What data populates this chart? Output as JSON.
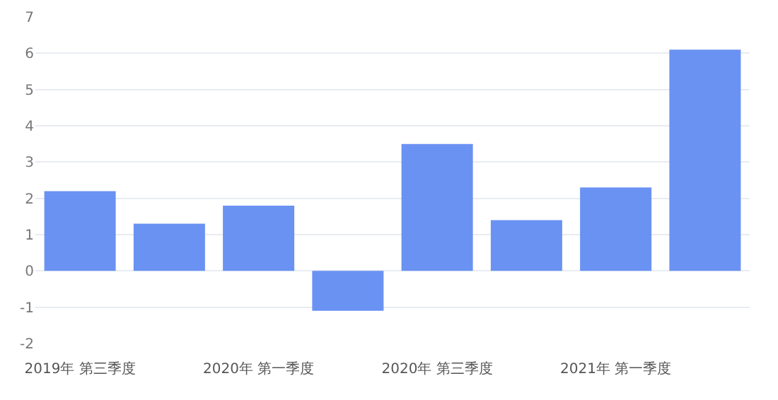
{
  "chart_data": {
    "type": "bar",
    "categories": [
      "2019年 第三季度",
      null,
      "2020年 第一季度",
      null,
      "2020年 第三季度",
      null,
      "2021年 第一季度",
      null
    ],
    "values": [
      2.2,
      1.3,
      1.8,
      -1.1,
      3.5,
      1.4,
      2.3,
      6.1
    ],
    "color": "#6a92f2",
    "ylim": [
      -2,
      7
    ],
    "yticks": [
      -2,
      -1,
      0,
      1,
      2,
      3,
      4,
      5,
      6,
      7
    ],
    "grid": "y"
  }
}
